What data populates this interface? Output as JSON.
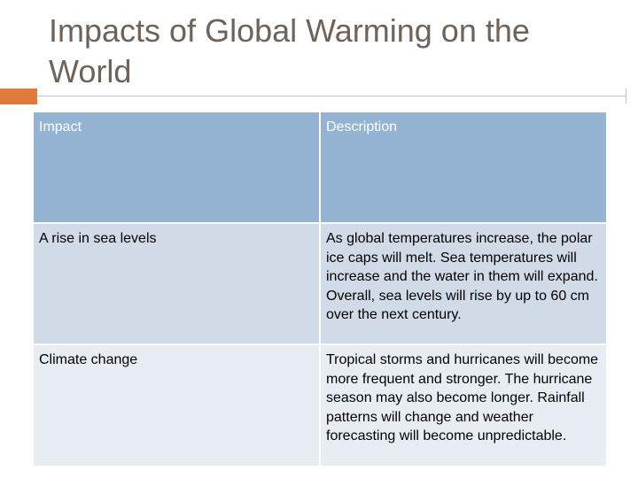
{
  "slide": {
    "title": "Impacts of Global Warming on the World"
  },
  "table": {
    "headers": [
      "Impact",
      "Description"
    ],
    "rows": [
      {
        "impact": "A rise in sea levels",
        "description": "As global temperatures increase, the polar ice caps will melt. Sea temperatures will increase and the water in them will expand. Overall, sea levels will rise by up to 60 cm over the next century."
      },
      {
        "impact": "Climate change",
        "description": "Tropical storms and hurricanes will become more frequent and stronger. The hurricane season may also become longer. Rainfall patterns will change and weather forecasting will become unpredictable."
      }
    ]
  },
  "colors": {
    "title": "#6f6259",
    "accent": "#e07a3f",
    "header_bg": "#95b3d3",
    "row_dark": "#d1dbe8",
    "row_light": "#e8edf4"
  }
}
